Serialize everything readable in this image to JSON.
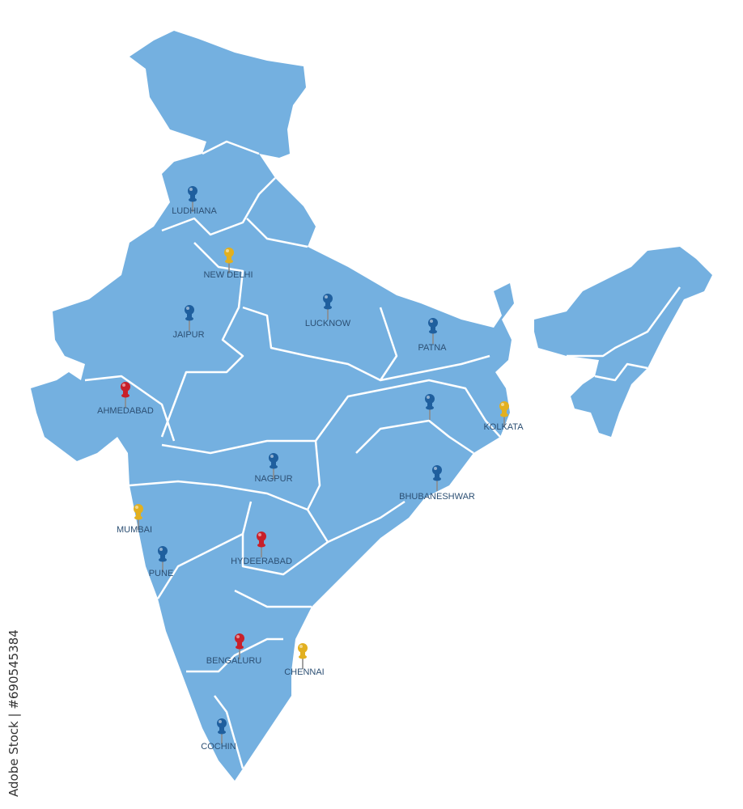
{
  "map": {
    "land_color": "#74b0e0",
    "border_color": "#ffffff",
    "label_color": "#2c4f73",
    "pin_colors": {
      "blue": "#1f5f9e",
      "yellow": "#e2b020",
      "red": "#c8202a"
    },
    "cities": [
      {
        "label": "LUDHIANA",
        "pin": "blue"
      },
      {
        "label": "NEW DELHI",
        "pin": "yellow"
      },
      {
        "label": "JAIPUR",
        "pin": "blue"
      },
      {
        "label": "LUCKNOW",
        "pin": "blue"
      },
      {
        "label": "PATNA",
        "pin": "blue"
      },
      {
        "label": "AHMEDABAD",
        "pin": "red"
      },
      {
        "label": "KOLKATA",
        "pin": "yellow"
      },
      {
        "label": "",
        "pin": "blue"
      },
      {
        "label": "NAGPUR",
        "pin": "blue"
      },
      {
        "label": "BHUBANESHWAR",
        "pin": "blue"
      },
      {
        "label": "MUMBAI",
        "pin": "yellow"
      },
      {
        "label": "HYDEERABAD",
        "pin": "red"
      },
      {
        "label": "PUNE",
        "pin": "blue"
      },
      {
        "label": "BENGALURU",
        "pin": "red"
      },
      {
        "label": "CHENNAI",
        "pin": "yellow"
      },
      {
        "label": "COCHIN",
        "pin": "blue"
      }
    ]
  },
  "credit": "Adobe Stock | #690545384"
}
